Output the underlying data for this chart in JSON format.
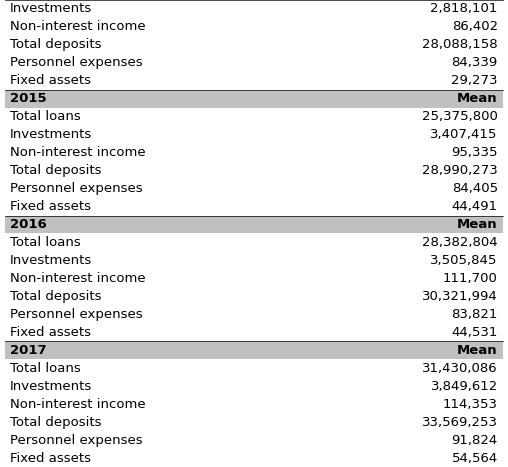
{
  "sections": [
    {
      "header": "2015",
      "header_right": "Mean",
      "rows": [
        [
          "Total loans",
          "25,375,800"
        ],
        [
          "Investments",
          "3,407,415"
        ],
        [
          "Non-interest income",
          "95,335"
        ],
        [
          "Total deposits",
          "28,990,273"
        ],
        [
          "Personnel expenses",
          "84,405"
        ],
        [
          "Fixed assets",
          "44,491"
        ]
      ]
    },
    {
      "header": "2016",
      "header_right": "Mean",
      "rows": [
        [
          "Total loans",
          "28,382,804"
        ],
        [
          "Investments",
          "3,505,845"
        ],
        [
          "Non-interest income",
          "111,700"
        ],
        [
          "Total deposits",
          "30,321,994"
        ],
        [
          "Personnel expenses",
          "83,821"
        ],
        [
          "Fixed assets",
          "44,531"
        ]
      ]
    },
    {
      "header": "2017",
      "header_right": "Mean",
      "rows": [
        [
          "Total loans",
          "31,430,086"
        ],
        [
          "Investments",
          "3,849,612"
        ],
        [
          "Non-interest income",
          "114,353"
        ],
        [
          "Total deposits",
          "33,569,253"
        ],
        [
          "Personnel expenses",
          "91,824"
        ],
        [
          "Fixed assets",
          "54,564"
        ]
      ]
    }
  ],
  "top_rows": [
    [
      "Investments",
      "2,818,101"
    ],
    [
      "Non-interest income",
      "86,402"
    ],
    [
      "Total deposits",
      "28,088,158"
    ],
    [
      "Personnel expenses",
      "84,339"
    ],
    [
      "Fixed assets",
      "29,273"
    ]
  ],
  "header_bg": "#c0c0c0",
  "row_bg": "#ffffff",
  "header_text_color": "#000000",
  "row_text_color": "#000000",
  "font_size": 9.5,
  "header_font_size": 9.5
}
